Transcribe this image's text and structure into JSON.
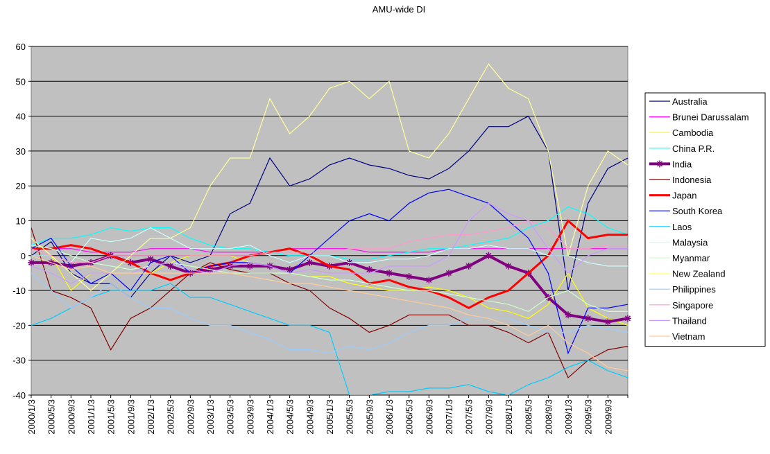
{
  "chart_data": {
    "type": "line",
    "title": "AMU-wide DI",
    "categories": [
      "2000/1/3",
      "2000/5/3",
      "2000/9/3",
      "2001/1/3",
      "2001/5/3",
      "2001/9/3",
      "2002/1/3",
      "2002/5/3",
      "2002/9/3",
      "2003/1/3",
      "2003/5/3",
      "2003/9/3",
      "2004/1/3",
      "2004/5/3",
      "2004/9/3",
      "2005/1/3",
      "2005/5/3",
      "2005/9/3",
      "2006/1/3",
      "2006/5/3",
      "2006/9/3",
      "2007/1/3",
      "2007/5/3",
      "2007/9/3",
      "2008/1/3",
      "2008/5/3",
      "2008/9/3",
      "2009/1/3",
      "2009/5/3",
      "2009/9/3",
      null
    ],
    "ylim": [
      -40,
      60
    ],
    "yticks": [
      -40,
      -30,
      -20,
      -10,
      0,
      10,
      20,
      30,
      40,
      50,
      60
    ],
    "grid": true,
    "plot_background": "#c0c0c0",
    "series": [
      {
        "name": "Australia",
        "color": "#000080",
        "line_width": 1.2,
        "values": [
          0,
          4,
          -5,
          -8,
          -8,
          -12,
          -5,
          0,
          -2,
          0,
          12,
          15,
          28,
          20,
          22,
          26,
          28,
          26,
          25,
          23,
          22,
          25,
          30,
          37,
          37,
          40,
          30,
          -10,
          15,
          25,
          28
        ]
      },
      {
        "name": "Brunei Darussalam",
        "color": "#ff00ff",
        "line_width": 1.2,
        "values": [
          2,
          2,
          2,
          1,
          1,
          1,
          2,
          2,
          2,
          1,
          1,
          1,
          1,
          2,
          2,
          2,
          2,
          1,
          1,
          1,
          1,
          2,
          2,
          2,
          2,
          2,
          2,
          2,
          2,
          2,
          2
        ]
      },
      {
        "name": "Cambodia",
        "color": "#ffff00",
        "line_width": 1.2,
        "values": [
          5,
          0,
          -10,
          -5,
          -5,
          -5,
          -5,
          -2,
          0,
          0,
          0,
          -2,
          -3,
          -5,
          -6,
          -6,
          -8,
          -9,
          -10,
          -10,
          -9,
          -10,
          -12,
          -15,
          -16,
          -18,
          -14,
          -5,
          -15,
          -18,
          -20
        ]
      },
      {
        "name": "China P.R.",
        "color": "#00ffff",
        "line_width": 1.2,
        "values": [
          3,
          5,
          5,
          6,
          8,
          7,
          8,
          8,
          5,
          3,
          2,
          2,
          1,
          0,
          0,
          0,
          -1,
          -1,
          0,
          1,
          2,
          2,
          3,
          4,
          5,
          8,
          10,
          14,
          12,
          8,
          6
        ]
      },
      {
        "name": "India",
        "color": "#800080",
        "line_width": 4,
        "marker": "asterisk",
        "values": [
          -2,
          -2,
          -3,
          -2,
          0,
          -2,
          -1,
          -3,
          -5,
          -4,
          -3,
          -3,
          -3,
          -4,
          -2,
          -3,
          -2,
          -4,
          -5,
          -6,
          -7,
          -5,
          -3,
          0,
          -3,
          -5,
          -12,
          -17,
          -18,
          -19,
          -18
        ]
      },
      {
        "name": "Indonesia",
        "color": "#800000",
        "line_width": 1.2,
        "values": [
          8,
          -10,
          -12,
          -15,
          -27,
          -18,
          -15,
          -10,
          -5,
          -2,
          -4,
          -5,
          -5,
          -8,
          -10,
          -15,
          -18,
          -22,
          -20,
          -17,
          -17,
          -17,
          -20,
          -20,
          -22,
          -25,
          -22,
          -35,
          -30,
          -27,
          -26
        ]
      },
      {
        "name": "Japan",
        "color": "#ff0000",
        "line_width": 3,
        "values": [
          2,
          2,
          3,
          2,
          0,
          -2,
          -5,
          -7,
          -5,
          -3,
          -2,
          0,
          1,
          2,
          0,
          -3,
          -4,
          -8,
          -7,
          -9,
          -10,
          -12,
          -15,
          -12,
          -10,
          -5,
          0,
          10,
          5,
          6,
          6
        ]
      },
      {
        "name": "South Korea",
        "color": "#0000ff",
        "line_width": 1.2,
        "values": [
          2,
          5,
          -3,
          -8,
          -5,
          -10,
          -2,
          0,
          -5,
          -3,
          -2,
          -2,
          -3,
          -5,
          0,
          5,
          10,
          12,
          10,
          15,
          18,
          19,
          17,
          15,
          10,
          5,
          -5,
          -28,
          -15,
          -15,
          -14
        ]
      },
      {
        "name": "Laos",
        "color": "#00ccff",
        "line_width": 1.2,
        "values": [
          -20,
          -18,
          -15,
          -12,
          -10,
          -10,
          -10,
          -8,
          -12,
          -12,
          -14,
          -16,
          -18,
          -20,
          -20,
          -22,
          -40,
          -40,
          -39,
          -39,
          -38,
          -38,
          -37,
          -39,
          -40,
          -37,
          -35,
          -32,
          -30,
          -33,
          -35
        ]
      },
      {
        "name": "Malaysia",
        "color": "#ccffff",
        "line_width": 1.2,
        "values": [
          0,
          0,
          -2,
          5,
          4,
          5,
          8,
          5,
          2,
          2,
          2,
          3,
          0,
          -2,
          0,
          0,
          -2,
          -2,
          -1,
          -1,
          0,
          2,
          2,
          3,
          2,
          2,
          0,
          0,
          -2,
          -3,
          -3
        ]
      },
      {
        "name": "Myanmar",
        "color": "#ccffcc",
        "line_width": 1.2,
        "values": [
          3,
          2,
          0,
          -2,
          -3,
          -4,
          -3,
          -2,
          -3,
          -4,
          -5,
          -5,
          -5,
          -5,
          -6,
          -7,
          -7,
          -8,
          -9,
          -10,
          -10,
          -11,
          -12,
          -13,
          -14,
          -16,
          -12,
          -10,
          -14,
          -16,
          -16
        ]
      },
      {
        "name": "New Zealand",
        "color": "#ffff99",
        "line_width": 1.2,
        "values": [
          5,
          0,
          -5,
          -10,
          -5,
          0,
          5,
          5,
          8,
          20,
          28,
          28,
          45,
          35,
          40,
          48,
          50,
          45,
          50,
          30,
          28,
          35,
          45,
          55,
          48,
          45,
          30,
          0,
          20,
          30,
          26
        ]
      },
      {
        "name": "Philippines",
        "color": "#99ccff",
        "line_width": 1.2,
        "values": [
          -5,
          -10,
          -15,
          -12,
          -8,
          -12,
          -15,
          -15,
          -18,
          -20,
          -20,
          -22,
          -24,
          -27,
          -27,
          -28,
          -26,
          -27,
          -25,
          -22,
          -20,
          -20,
          -18,
          -18,
          -18,
          -20,
          -22,
          -22,
          -20,
          -21,
          -22
        ]
      },
      {
        "name": "Singapore",
        "color": "#ff99cc",
        "line_width": 1.2,
        "values": [
          2,
          0,
          -2,
          -2,
          0,
          0,
          0,
          0,
          0,
          0,
          0,
          0,
          1,
          1,
          1,
          1,
          2,
          2,
          2,
          4,
          5,
          6,
          6,
          7,
          8,
          10,
          8,
          2,
          2,
          3,
          3
        ]
      },
      {
        "name": "Thailand",
        "color": "#cc99ff",
        "line_width": 1.2,
        "values": [
          -3,
          -5,
          -8,
          -5,
          -5,
          -5,
          -3,
          -2,
          -4,
          -5,
          -3,
          -2,
          -3,
          -5,
          -4,
          -5,
          -5,
          -5,
          -3,
          -3,
          -3,
          0,
          10,
          15,
          12,
          10,
          2,
          -5,
          0,
          2,
          2
        ]
      },
      {
        "name": "Vietnam",
        "color": "#ffcc99",
        "line_width": 1.2,
        "values": [
          0,
          -2,
          -4,
          -3,
          -5,
          -5,
          -5,
          -5,
          -5,
          -5,
          -5,
          -6,
          -7,
          -8,
          -8,
          -9,
          -10,
          -11,
          -12,
          -13,
          -14,
          -15,
          -17,
          -18,
          -20,
          -23,
          -20,
          -25,
          -28,
          -32,
          -33
        ]
      }
    ]
  }
}
